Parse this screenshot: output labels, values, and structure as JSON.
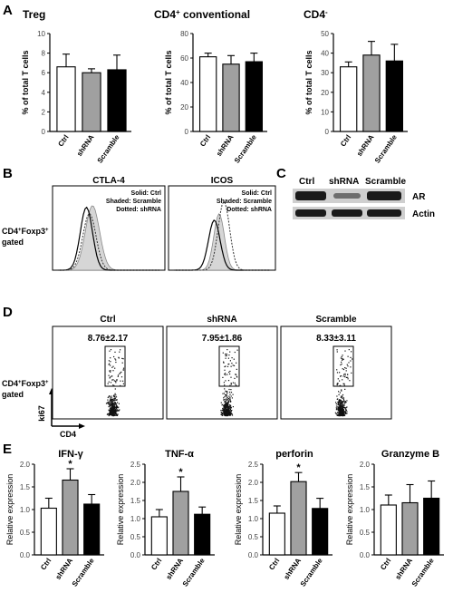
{
  "panel_letters": [
    "A",
    "B",
    "C",
    "D",
    "E"
  ],
  "panel_a": {
    "ylabel": "% of total T cells",
    "charts": [
      {
        "title": "Treg",
        "sup": "",
        "ylim": [
          0,
          10
        ],
        "yticks": [
          "0",
          "2",
          "4",
          "6",
          "8",
          "10"
        ],
        "categories": [
          "Ctrl",
          "shRNA",
          "Scramble"
        ],
        "values": [
          6.6,
          6.0,
          6.3
        ],
        "errors": [
          1.3,
          0.4,
          1.5
        ],
        "colors": [
          "#ffffff",
          "#a0a0a0",
          "#000000"
        ]
      },
      {
        "title": "CD4",
        "sup": "+",
        "title_suffix": " conventional",
        "ylim": [
          0,
          80
        ],
        "yticks": [
          "0",
          "20",
          "40",
          "60",
          "80"
        ],
        "categories": [
          "Ctrl",
          "shRNA",
          "Scramble"
        ],
        "values": [
          61,
          55,
          57
        ],
        "errors": [
          3,
          7,
          7
        ],
        "colors": [
          "#ffffff",
          "#a0a0a0",
          "#000000"
        ]
      },
      {
        "title": "CD4",
        "sup": "-",
        "title_suffix": "",
        "ylim": [
          0,
          50
        ],
        "yticks": [
          "0",
          "10",
          "20",
          "30",
          "40",
          "50"
        ],
        "categories": [
          "Ctrl",
          "shRNA",
          "Scramble"
        ],
        "values": [
          33,
          39,
          36
        ],
        "errors": [
          2.5,
          7,
          8.5
        ],
        "colors": [
          "#ffffff",
          "#a0a0a0",
          "#000000"
        ]
      }
    ]
  },
  "panel_b": {
    "gate_label_main": "CD4",
    "gate_label_sup1": "+",
    "gate_label_mid": "Foxp3",
    "gate_label_sup2": "+",
    "gate_label_line2": "gated",
    "histograms": [
      {
        "title": "CTLA-4",
        "legend": [
          "Solid: Ctrl",
          "Shaded: Scramble",
          "Dotted: shRNA"
        ]
      },
      {
        "title": "ICOS",
        "legend": [
          "Solid: Ctrl",
          "Shaded: Scramble",
          "Dotted: shRNA"
        ]
      }
    ]
  },
  "panel_c": {
    "lanes": [
      "Ctrl",
      "shRNA",
      "Scramble"
    ],
    "rows": [
      "AR",
      "Actin"
    ]
  },
  "panel_d": {
    "gate_label_main": "CD4",
    "gate_label_sup1": "+",
    "gate_label_mid": "Foxp3",
    "gate_label_sup2": "+",
    "gate_label_line2": "gated",
    "y_axis": "ki67",
    "x_axis": "CD4",
    "plots": [
      {
        "title": "Ctrl",
        "value": "8.76±2.17"
      },
      {
        "title": "shRNA",
        "value": "7.95±1.86"
      },
      {
        "title": "Scramble",
        "value": "8.33±3.11"
      }
    ]
  },
  "panel_e": {
    "ylabel": "Relative expression",
    "charts": [
      {
        "title": "IFN-γ",
        "ylim": [
          0,
          2.0
        ],
        "yticks": [
          "0.0",
          "0.5",
          "1.0",
          "1.5",
          "2.0"
        ],
        "categories": [
          "Ctrl",
          "shRNA",
          "Scramble"
        ],
        "values": [
          1.03,
          1.65,
          1.12
        ],
        "errors": [
          0.22,
          0.25,
          0.21
        ],
        "stars": [
          "",
          "*",
          ""
        ],
        "colors": [
          "#ffffff",
          "#a0a0a0",
          "#000000"
        ]
      },
      {
        "title": "TNF-α",
        "ylim": [
          0,
          2.5
        ],
        "yticks": [
          "0.0",
          "0.5",
          "1.0",
          "1.5",
          "2.0",
          "2.5"
        ],
        "categories": [
          "Ctrl",
          "shRNA",
          "Scramble"
        ],
        "values": [
          1.05,
          1.75,
          1.12
        ],
        "errors": [
          0.2,
          0.4,
          0.2
        ],
        "stars": [
          "",
          "*",
          ""
        ],
        "colors": [
          "#ffffff",
          "#a0a0a0",
          "#000000"
        ]
      },
      {
        "title": "perforin",
        "ylim": [
          0,
          2.5
        ],
        "yticks": [
          "0.0",
          "0.5",
          "1.0",
          "1.5",
          "2.0",
          "2.5"
        ],
        "categories": [
          "Ctrl",
          "shRNA",
          "Scramble"
        ],
        "values": [
          1.15,
          2.02,
          1.28
        ],
        "errors": [
          0.2,
          0.25,
          0.28
        ],
        "stars": [
          "",
          "*",
          ""
        ],
        "colors": [
          "#ffffff",
          "#a0a0a0",
          "#000000"
        ]
      },
      {
        "title": "Granzyme B",
        "ylim": [
          0,
          2.0
        ],
        "yticks": [
          "0.0",
          "0.5",
          "1.0",
          "1.5",
          "2.0"
        ],
        "categories": [
          "Ctrl",
          "shRNA",
          "Scramble"
        ],
        "values": [
          1.1,
          1.15,
          1.25
        ],
        "errors": [
          0.22,
          0.4,
          0.38
        ],
        "stars": [
          "",
          "",
          ""
        ],
        "colors": [
          "#ffffff",
          "#a0a0a0",
          "#000000"
        ]
      }
    ]
  },
  "chart_data": [
    {
      "type": "bar",
      "title": "Treg",
      "ylabel": "% of total T cells",
      "ylim": [
        0,
        10
      ],
      "categories": [
        "Ctrl",
        "shRNA",
        "Scramble"
      ],
      "values": [
        6.6,
        6.0,
        6.3
      ],
      "errors": [
        1.3,
        0.4,
        1.5
      ]
    },
    {
      "type": "bar",
      "title": "CD4+ conventional",
      "ylabel": "% of total T cells",
      "ylim": [
        0,
        80
      ],
      "categories": [
        "Ctrl",
        "shRNA",
        "Scramble"
      ],
      "values": [
        61,
        55,
        57
      ],
      "errors": [
        3,
        7,
        7
      ]
    },
    {
      "type": "bar",
      "title": "CD4-",
      "ylabel": "% of total T cells",
      "ylim": [
        0,
        50
      ],
      "categories": [
        "Ctrl",
        "shRNA",
        "Scramble"
      ],
      "values": [
        33,
        39,
        36
      ],
      "errors": [
        2.5,
        7,
        8.5
      ]
    },
    {
      "type": "bar",
      "title": "IFN-γ",
      "ylabel": "Relative expression",
      "ylim": [
        0,
        2.0
      ],
      "categories": [
        "Ctrl",
        "shRNA",
        "Scramble"
      ],
      "values": [
        1.03,
        1.65,
        1.12
      ],
      "errors": [
        0.22,
        0.25,
        0.21
      ]
    },
    {
      "type": "bar",
      "title": "TNF-α",
      "ylabel": "Relative expression",
      "ylim": [
        0,
        2.5
      ],
      "categories": [
        "Ctrl",
        "shRNA",
        "Scramble"
      ],
      "values": [
        1.05,
        1.75,
        1.12
      ],
      "errors": [
        0.2,
        0.4,
        0.2
      ]
    },
    {
      "type": "bar",
      "title": "perforin",
      "ylabel": "Relative expression",
      "ylim": [
        0,
        2.5
      ],
      "categories": [
        "Ctrl",
        "shRNA",
        "Scramble"
      ],
      "values": [
        1.15,
        2.02,
        1.28
      ],
      "errors": [
        0.2,
        0.25,
        0.28
      ]
    },
    {
      "type": "bar",
      "title": "Granzyme B",
      "ylabel": "Relative expression",
      "ylim": [
        0,
        2.0
      ],
      "categories": [
        "Ctrl",
        "shRNA",
        "Scramble"
      ],
      "values": [
        1.1,
        1.15,
        1.25
      ],
      "errors": [
        0.22,
        0.4,
        0.38
      ]
    }
  ]
}
